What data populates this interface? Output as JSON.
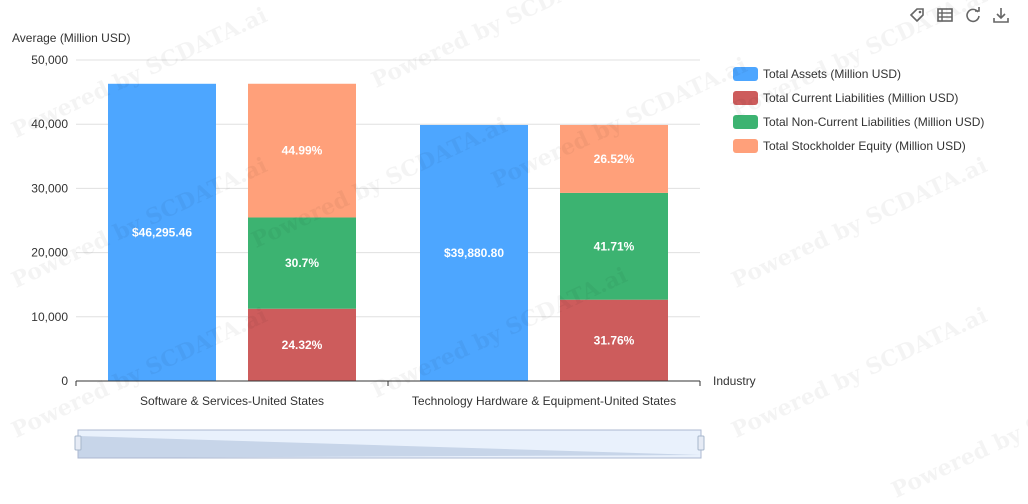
{
  "watermark": "Powered by SCDATA.ai",
  "toolbox": [
    {
      "name": "tag-icon"
    },
    {
      "name": "data-view-icon"
    },
    {
      "name": "refresh-icon"
    },
    {
      "name": "download-icon"
    }
  ],
  "chart_data": {
    "type": "bar",
    "ylabel": "Average (Million USD)",
    "xlabel": "Industry",
    "ylim": [
      0,
      50000
    ],
    "yticks": [
      "0",
      "10,000",
      "20,000",
      "30,000",
      "40,000",
      "50,000"
    ],
    "categories": [
      "Software & Services-United States",
      "Technology Hardware & Equipment-United States"
    ],
    "series": [
      {
        "name": "Total Assets (Million USD)",
        "color": "#4da6ff",
        "stack": "assets",
        "values": [
          46295.46,
          39880.8
        ],
        "labels": [
          "$46,295.46",
          "$39,880.80"
        ]
      },
      {
        "name": "Total Current Liabilities (Million USD)",
        "color": "#cd5c5c",
        "stack": "split",
        "values": [
          11259.06,
          12666.14
        ],
        "labels": [
          "24.32%",
          "31.76%"
        ]
      },
      {
        "name": "Total Non-Current Liabilities (Million USD)",
        "color": "#3cb371",
        "stack": "split",
        "values": [
          14212.71,
          16634.28
        ],
        "labels": [
          "30.7%",
          "41.71%"
        ]
      },
      {
        "name": "Total Stockholder Equity (Million USD)",
        "color": "#ffa07a",
        "stack": "split",
        "values": [
          20828.3,
          10576.39
        ],
        "labels": [
          "44.99%",
          "26.52%"
        ]
      }
    ],
    "grid": true,
    "legend_position": "right"
  },
  "datazoom": {
    "start": 0,
    "end": 100
  }
}
